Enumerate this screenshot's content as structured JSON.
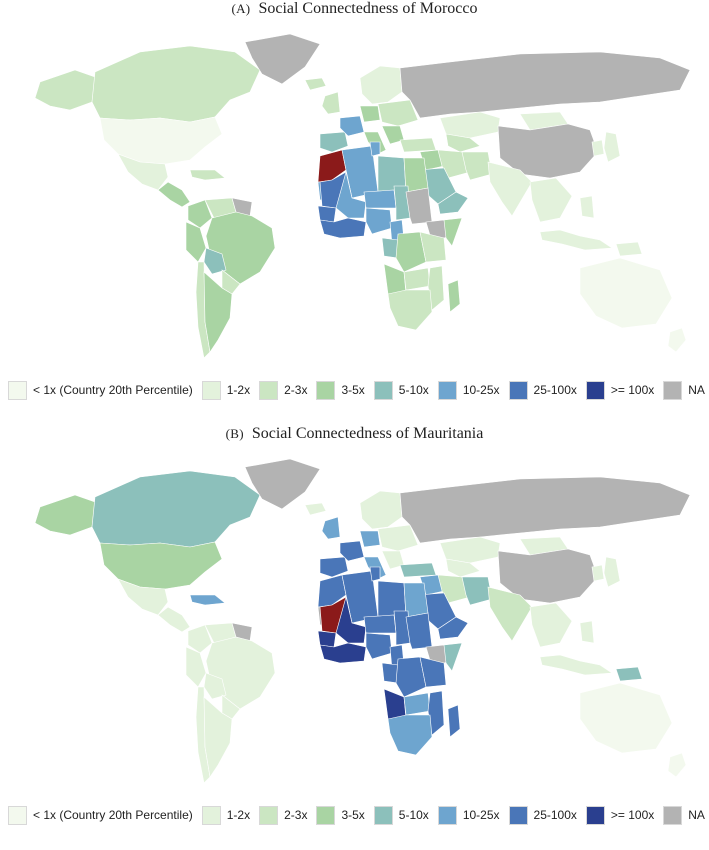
{
  "colors": {
    "lt1": "#f3f9ee",
    "b12": "#e3f2dc",
    "b23": "#cbe6c2",
    "b35": "#a9d4a3",
    "b510": "#8cc0bb",
    "b1025": "#6ea5cf",
    "b25100": "#4a76b8",
    "b100": "#2a3f8f",
    "na": "#b3b3b3",
    "home": "#8b1a1a",
    "border": "#ffffff"
  },
  "legend": [
    {
      "key": "lt1",
      "label": "< 1x (Country 20th Percentile)"
    },
    {
      "key": "b12",
      "label": "1-2x"
    },
    {
      "key": "b23",
      "label": "2-3x"
    },
    {
      "key": "b35",
      "label": "3-5x"
    },
    {
      "key": "b510",
      "label": "5-10x"
    },
    {
      "key": "b1025",
      "label": "10-25x"
    },
    {
      "key": "b25100",
      "label": "25-100x"
    },
    {
      "key": "b100",
      "label": ">= 100x"
    },
    {
      "key": "na",
      "label": "NA"
    }
  ],
  "panels": [
    {
      "tag": "(A)",
      "title": "Social Connectedness of Morocco",
      "home": "Morocco",
      "fills": {
        "canada": "b23",
        "alaska": "b23",
        "greenland": "na",
        "usa": "lt1",
        "mexico": "b12",
        "central_america": "b35",
        "caribbean": "b23",
        "colombia": "b35",
        "venezuela": "b23",
        "guianas": "na",
        "peru": "b35",
        "brazil": "b35",
        "bolivia": "b510",
        "paraguay": "b23",
        "chile": "b23",
        "argentina": "b35",
        "uk_ireland": "b23",
        "iberia": "b510",
        "france": "b1025",
        "benelux_germany": "b35",
        "scandinavia": "b12",
        "iceland": "b23",
        "italy": "b35",
        "eastern_europe": "b23",
        "balkans": "b35",
        "turkey": "b23",
        "russia": "na",
        "kazakhstan": "b12",
        "mongolia": "b12",
        "china": "na",
        "western_sahara": "b1025",
        "mauritania": "b25100",
        "algeria": "b1025",
        "tunisia": "b1025",
        "libya": "b510",
        "egypt": "b35",
        "mali": "b1025",
        "niger": "b1025",
        "chad": "b510",
        "senegal_gambia": "b25100",
        "west_africa": "b25100",
        "nigeria": "b1025",
        "cameroon": "b1025",
        "gabon_congo": "b510",
        "sudan": "na",
        "ethiopia": "na",
        "horn": "b35",
        "drc": "b35",
        "angola": "b35",
        "east_africa": "b23",
        "zambia": "b23",
        "mozambique": "b23",
        "southern_africa": "b23",
        "madagascar": "b35",
        "saudi": "b510",
        "yemen_oman": "b510",
        "iraq_syria": "b35",
        "iran": "b23",
        "afghanistan_pakistan": "b23",
        "central_asia": "b23",
        "india": "b12",
        "southeast_asia": "b12",
        "indonesia": "b12",
        "korea": "b12",
        "japan": "b12",
        "philippines": "b12",
        "png": "b12",
        "australia": "lt1",
        "new_zealand": "lt1"
      }
    },
    {
      "tag": "(B)",
      "title": "Social Connectedness of Mauritania",
      "home": "Mauritania",
      "fills": {
        "canada": "b510",
        "alaska": "b35",
        "greenland": "na",
        "usa": "b35",
        "mexico": "b12",
        "central_america": "b12",
        "caribbean": "b1025",
        "colombia": "b12",
        "venezuela": "b12",
        "guianas": "na",
        "peru": "b12",
        "brazil": "b12",
        "bolivia": "b12",
        "paraguay": "b12",
        "chile": "b12",
        "argentina": "b12",
        "uk_ireland": "b1025",
        "iberia": "b25100",
        "france": "b25100",
        "benelux_germany": "b1025",
        "scandinavia": "b12",
        "iceland": "b12",
        "italy": "b1025",
        "eastern_europe": "b12",
        "balkans": "b12",
        "turkey": "b510",
        "russia": "na",
        "kazakhstan": "b12",
        "mongolia": "b12",
        "china": "na",
        "western_sahara": "na",
        "morocco": "b25100",
        "algeria": "b25100",
        "tunisia": "b25100",
        "libya": "b25100",
        "egypt": "b1025",
        "mali": "b100",
        "niger": "b25100",
        "chad": "b25100",
        "senegal_gambia": "b100",
        "west_africa": "b100",
        "nigeria": "b25100",
        "cameroon": "b25100",
        "gabon_congo": "b25100",
        "sudan": "b25100",
        "ethiopia": "na",
        "horn": "b510",
        "drc": "b25100",
        "angola": "b100",
        "east_africa": "b25100",
        "zambia": "b1025",
        "mozambique": "b25100",
        "southern_africa": "b1025",
        "madagascar": "b25100",
        "saudi": "b25100",
        "yemen_oman": "b25100",
        "iraq_syria": "b1025",
        "iran": "b23",
        "afghanistan_pakistan": "b510",
        "central_asia": "b12",
        "india": "b23",
        "southeast_asia": "b12",
        "indonesia": "b12",
        "korea": "b12",
        "japan": "b12",
        "philippines": "b12",
        "png": "b510",
        "australia": "lt1",
        "new_zealand": "lt1"
      }
    }
  ]
}
